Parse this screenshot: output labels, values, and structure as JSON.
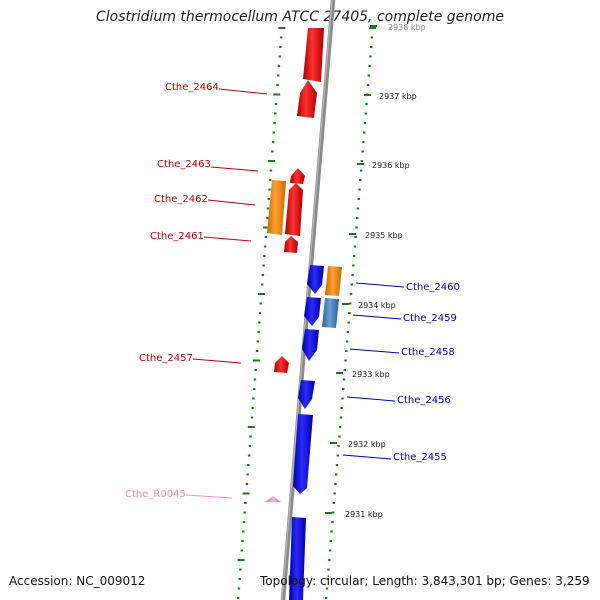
{
  "title": "Clostridium thermocellum ATCC 27405, complete genome",
  "footer": {
    "accession": "Accession: NC_009012",
    "topology": "Topology: circular; Length: 3,843,301 bp; Genes: 3,259"
  },
  "colors": {
    "forward_gene": "#e11b1b",
    "reverse_gene": "#1414e6",
    "forward_label": "#c00000",
    "reverse_label": "#0000bb",
    "orange_feature": "#ee8a12",
    "steelblue_feature": "#4a7fb8",
    "rna_feature": "#ef8fc0",
    "tick_marks": "#1e7a1e",
    "backbone": "#888888"
  },
  "kbp_labels": [
    "2938 kbp",
    "2937 kbp",
    "2936 kbp",
    "2935 kbp",
    "2934 kbp",
    "2933 kbp",
    "2932 kbp",
    "2931 kbp"
  ],
  "gene_labels_left": [
    "Cthe_2464",
    "Cthe_2463",
    "Cthe_2462",
    "Cthe_2461",
    "Cthe_2457",
    "Cthe_R0045"
  ],
  "gene_labels_right": [
    "Cthe_2460",
    "Cthe_2459",
    "Cthe_2458",
    "Cthe_2456",
    "Cthe_2455"
  ]
}
